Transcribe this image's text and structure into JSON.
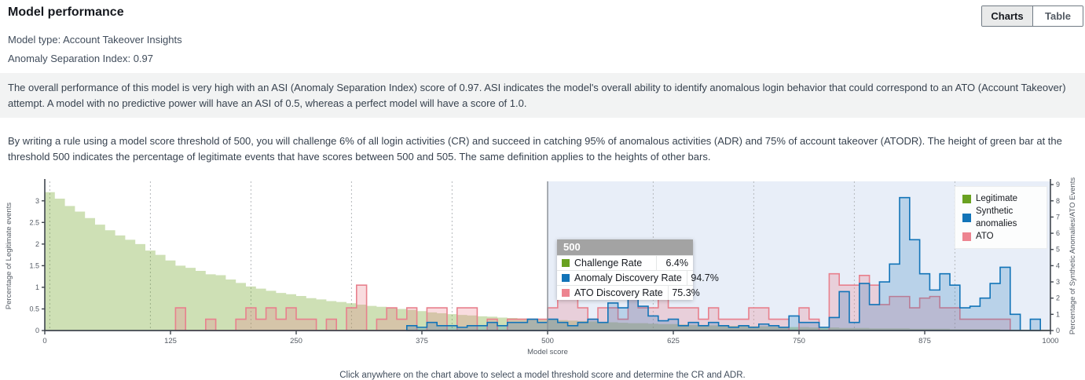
{
  "header": {
    "title": "Model performance",
    "view_toggle": [
      {
        "label": "Charts",
        "active": true
      },
      {
        "label": "Table",
        "active": false
      }
    ]
  },
  "meta": {
    "model_type": "Model type: Account Takeover Insights",
    "asi": "Anomaly Separation Index: 0.97"
  },
  "descriptions": {
    "asi_note": "The overall performance of this model is very high with an ASI (Anomaly Separation Index) score of 0.97. ASI indicates the model's overall ability to identify anomalous login behavior that could correspond to an ATO (Account Takeover) attempt. A model with no predictive power will have an ASI of 0.5, whereas a perfect model will have a score of 1.0.",
    "threshold_note": "By writing a rule using a model score threshold of 500, you will challenge 6% of all login activities (CR) and succeed in catching 95% of anomalous activities (ADR) and 75% of account takeover (ATODR). The height of green bar at the threshold 500 indicates the percentage of legitimate events that have scores between 500 and 505. The same definition applies to the heights of other bars."
  },
  "legend": [
    {
      "label": "Legitimate",
      "color": "#69a121"
    },
    {
      "label": "Synthetic anomalies",
      "color": "#1274b8"
    },
    {
      "label": "ATO",
      "color": "#ed8490"
    }
  ],
  "tooltip": {
    "score": "500",
    "rows": [
      {
        "label": "Challenge Rate",
        "value": "6.4%",
        "color": "#69a121"
      },
      {
        "label": "Anomaly Discovery Rate",
        "value": "94.7%",
        "color": "#1274b8"
      },
      {
        "label": "ATO Discovery Rate",
        "value": "75.3%",
        "color": "#ed8490"
      }
    ]
  },
  "caption": "Click anywhere on the chart above to select a model threshold score and determine the CR and ADR.",
  "chart_data": {
    "type": "bar",
    "subtype": "histogram",
    "bin_start": 0,
    "bin_width": 10,
    "x_min": 0,
    "x_max": 1000,
    "xlabel": "Model score",
    "x_ticks": [
      0,
      125,
      250,
      375,
      500,
      625,
      750,
      875,
      1000
    ],
    "gridlines_x": [
      5,
      105,
      205,
      305,
      405,
      605,
      705,
      805,
      905
    ],
    "threshold": {
      "value": 500,
      "shaded_to": 1000,
      "region_color": "#e8eef8",
      "line_color": "#8d939a"
    },
    "y_left": {
      "label": "Percentage of Legitimate events",
      "ticks": [
        0,
        0.5,
        1,
        1.5,
        2,
        2.5,
        3
      ],
      "max": 3.45
    },
    "y_right": {
      "label": "Percentage of Synthetic Anomalies/ATO Events",
      "ticks": [
        0,
        1,
        2,
        3,
        4,
        5,
        6,
        7,
        8,
        9
      ],
      "max": 9.2
    },
    "series": [
      {
        "name": "Legitimate",
        "axis": "left",
        "style": "filled",
        "color": "#69a121",
        "fill": "rgba(105,160,30,0.33)",
        "values": [
          3.2,
          3.05,
          2.88,
          2.75,
          2.6,
          2.45,
          2.32,
          2.2,
          2.1,
          2.0,
          1.85,
          1.75,
          1.62,
          1.5,
          1.45,
          1.38,
          1.3,
          1.28,
          1.18,
          1.1,
          1.02,
          0.97,
          0.92,
          0.87,
          0.84,
          0.8,
          0.75,
          0.72,
          0.68,
          0.66,
          0.63,
          0.6,
          0.57,
          0.55,
          0.52,
          0.5,
          0.48,
          0.45,
          0.42,
          0.4,
          0.38,
          0.36,
          0.35,
          0.33,
          0.32,
          0.3,
          0.29,
          0.28,
          0.27,
          0.26,
          0.25,
          0.24,
          0.23,
          0.22,
          0.21,
          0.2,
          0.19,
          0.18,
          0.17,
          0.17,
          0.16,
          0.15,
          0.15,
          0.14,
          0.13,
          0.13,
          0.12,
          0.12,
          0.11,
          0.11,
          0.1,
          0.1,
          0.09,
          0.09,
          0.08,
          0.08,
          0.07,
          0.07,
          0.07,
          0.06,
          0.06,
          0.06,
          0.05,
          0.05,
          0.05,
          0.05,
          0.04,
          0.04,
          0.04,
          0.04,
          0.03,
          0.03,
          0.03,
          0.03,
          0.03,
          0.02,
          0.02,
          0.02,
          0.02,
          0.02
        ]
      },
      {
        "name": "ATO",
        "axis": "right",
        "style": "step",
        "color": "#e8808d",
        "fill": "rgba(232,128,141,0.28)",
        "values": [
          0,
          0,
          0,
          0,
          0,
          0,
          0,
          0,
          0,
          0,
          0,
          0,
          0,
          1.4,
          0,
          0,
          0.7,
          0,
          0,
          0.7,
          1.4,
          0.7,
          1.4,
          0.7,
          1.4,
          0.7,
          0.7,
          0,
          0.7,
          0,
          1.4,
          2.8,
          0,
          0.7,
          1.4,
          0.7,
          1.4,
          0,
          1.4,
          1.4,
          0,
          1.4,
          1.4,
          0,
          0.7,
          0,
          0.7,
          0.7,
          0.7,
          0.7,
          1.4,
          2.1,
          2.1,
          1.4,
          0.7,
          1.4,
          1.4,
          0.7,
          2.1,
          1.4,
          1.4,
          2.1,
          1.4,
          1.4,
          1.4,
          0.7,
          1.4,
          0.7,
          0.7,
          0.7,
          1.4,
          1.4,
          0.7,
          0.7,
          0,
          1.4,
          0.7,
          0,
          3.5,
          2.8,
          2.8,
          3.4,
          2.8,
          1.6,
          2.1,
          2.1,
          1.4,
          2.0,
          2.1,
          1.4,
          1.4,
          0.7,
          0.7,
          0.7,
          0.7,
          0.7,
          0,
          0,
          0,
          0
        ]
      },
      {
        "name": "Synthetic anomalies",
        "axis": "right",
        "style": "step",
        "color": "#1274b8",
        "fill": "rgba(18,116,184,0.22)",
        "values": [
          0,
          0,
          0,
          0,
          0,
          0,
          0,
          0,
          0,
          0,
          0,
          0,
          0,
          0,
          0,
          0,
          0,
          0,
          0,
          0,
          0,
          0,
          0,
          0,
          0,
          0,
          0,
          0,
          0,
          0,
          0,
          0,
          0,
          0,
          0,
          0,
          0.3,
          0.2,
          0.5,
          0.3,
          0.3,
          0.2,
          0.3,
          0.3,
          0.5,
          0.3,
          0.5,
          0.5,
          0.7,
          0.5,
          0.7,
          0.5,
          0.3,
          0.5,
          0.7,
          0.5,
          1.7,
          1.4,
          2.6,
          1.5,
          0.9,
          0.6,
          0.7,
          0.3,
          0.5,
          0.3,
          0.5,
          0.3,
          0.2,
          0.3,
          0.2,
          0.4,
          0.3,
          0.2,
          0.9,
          0.5,
          0.5,
          0.2,
          0.8,
          2.4,
          0.5,
          2.9,
          1.6,
          3.0,
          4.1,
          8.2,
          5.6,
          3.5,
          2.5,
          3.5,
          2.8,
          1.4,
          1.5,
          2.0,
          2.9,
          3.9,
          1.0,
          0,
          0.7,
          0
        ]
      }
    ]
  }
}
